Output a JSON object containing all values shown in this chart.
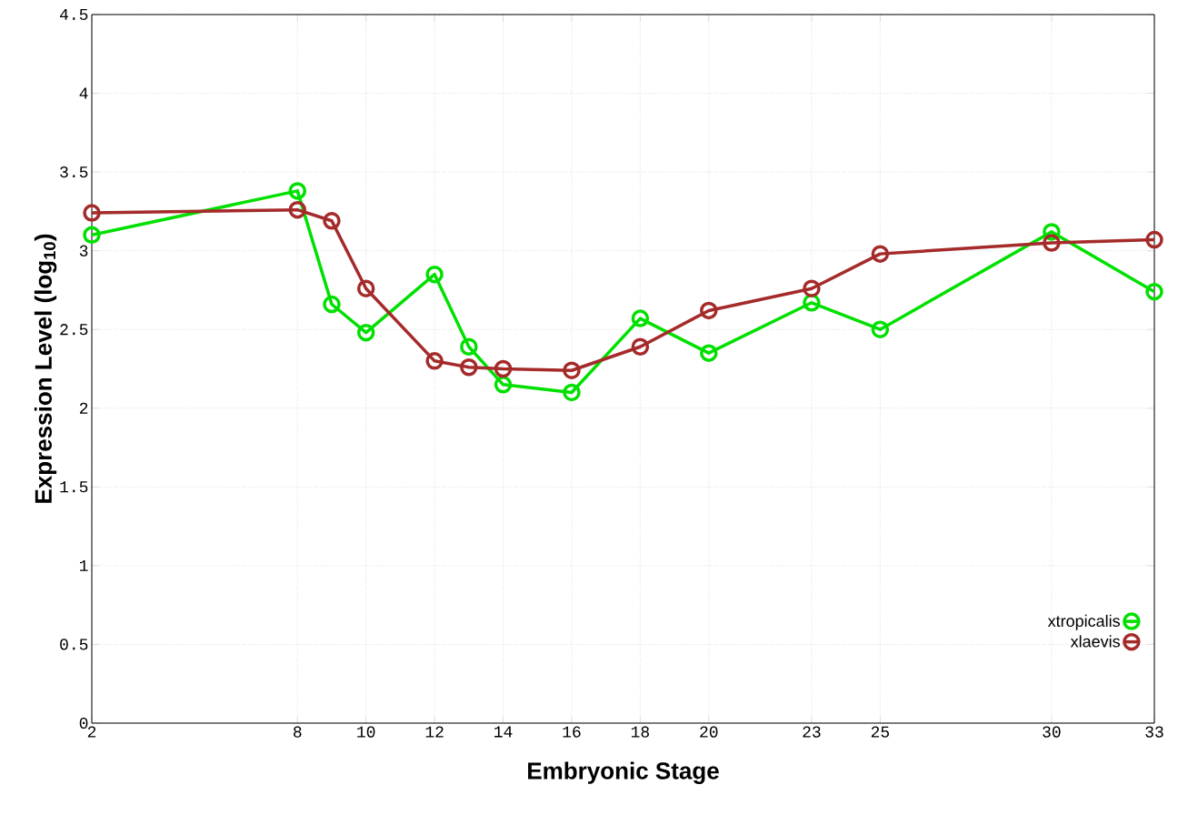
{
  "chart_data": {
    "type": "line",
    "xlabel": "Embryonic Stage",
    "ylabel": "Expression Level (log$_{10}$)",
    "x": [
      2,
      8,
      9,
      10,
      12,
      13,
      14,
      16,
      18,
      20,
      23,
      25,
      30,
      33
    ],
    "series": [
      {
        "name": "xtropicalis",
        "color": "#00e000",
        "values": [
          3.1,
          3.38,
          2.66,
          2.48,
          2.85,
          2.39,
          2.15,
          2.1,
          2.57,
          2.35,
          2.67,
          2.5,
          3.12,
          2.74
        ]
      },
      {
        "name": "xlaevis",
        "color": "#a52a2a",
        "values": [
          3.24,
          3.26,
          3.19,
          2.76,
          2.3,
          2.26,
          2.25,
          2.24,
          2.39,
          2.62,
          2.76,
          2.98,
          3.05,
          3.07
        ]
      }
    ],
    "xlim": [
      2,
      33
    ],
    "ylim": [
      0,
      4.5
    ],
    "xticks": [
      2,
      8,
      10,
      12,
      14,
      16,
      18,
      20,
      23,
      25,
      30,
      33
    ],
    "yticks": [
      0,
      {
        "value": 0.5,
        "label": "0.5"
      },
      1,
      {
        "value": 1.5,
        "label": "1.5"
      },
      2,
      {
        "value": 2.5,
        "label": "2.5"
      },
      3,
      {
        "value": 3.5,
        "label": "3.5"
      },
      4,
      {
        "value": 4.5,
        "label": "4.5"
      }
    ],
    "grid": true,
    "legend": "bottom right",
    "marker": "circle",
    "line_style": "solid"
  }
}
